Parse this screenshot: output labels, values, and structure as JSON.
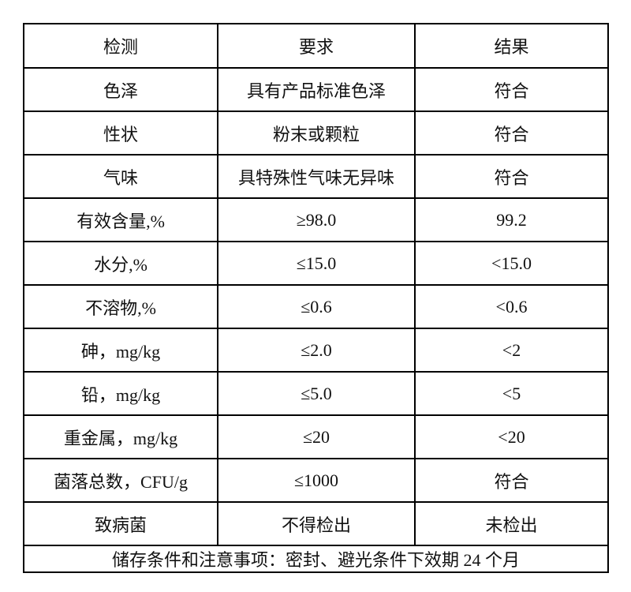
{
  "table": {
    "headers": [
      "检测",
      "要求",
      "结果"
    ],
    "rows": [
      {
        "item": "色泽",
        "requirement": "具有产品标准色泽",
        "result": "符合"
      },
      {
        "item": "性状",
        "requirement": "粉末或颗粒",
        "result": "符合"
      },
      {
        "item": "气味",
        "requirement": "具特殊性气味无异味",
        "result": "符合"
      },
      {
        "item": "有效含量,%",
        "requirement": "≥98.0",
        "result": "99.2"
      },
      {
        "item": "水分,%",
        "requirement": "≤15.0",
        "result": "<15.0"
      },
      {
        "item": "不溶物,%",
        "requirement": "≤0.6",
        "result": "<0.6"
      },
      {
        "item": "砷，mg/kg",
        "requirement": "≤2.0",
        "result": "<2"
      },
      {
        "item": "铅，mg/kg",
        "requirement": "≤5.0",
        "result": "<5"
      },
      {
        "item": "重金属，mg/kg",
        "requirement": "≤20",
        "result": "<20"
      },
      {
        "item": "菌落总数，CFU/g",
        "requirement": "≤1000",
        "result": "符合"
      },
      {
        "item": "致病菌",
        "requirement": "不得检出",
        "result": "未检出"
      }
    ],
    "footer_note": "储存条件和注意事项：密封、避光条件下效期 24 个月"
  },
  "colors": {
    "border": "#000000",
    "text": "#111111",
    "background": "#ffffff"
  }
}
